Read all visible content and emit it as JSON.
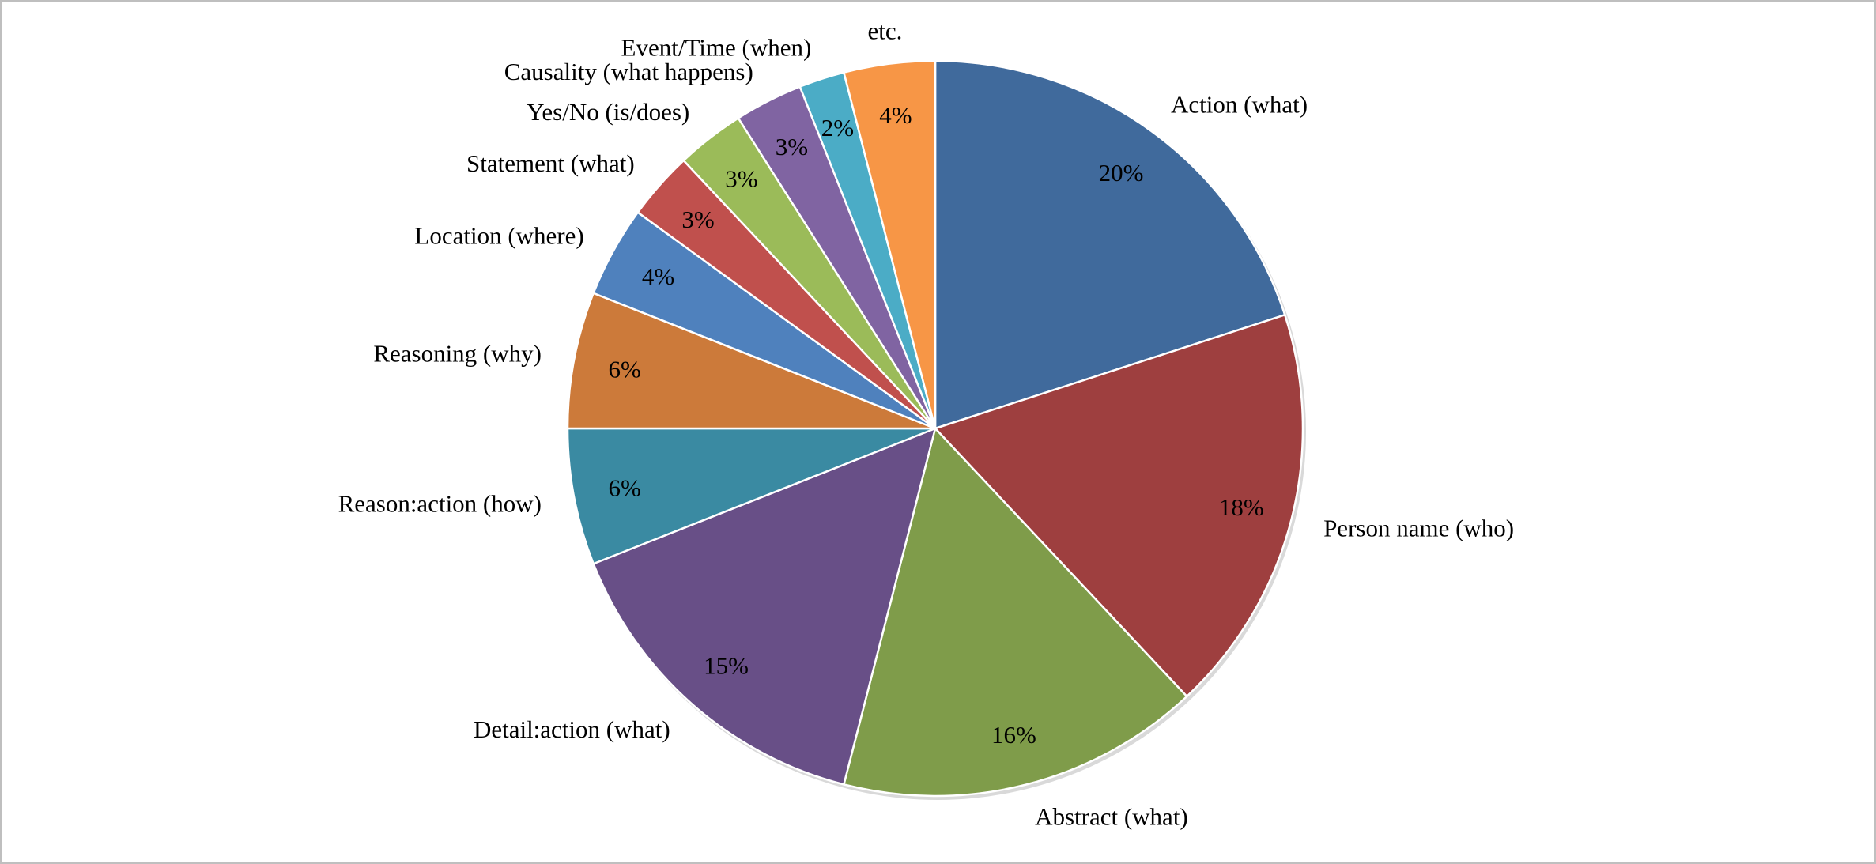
{
  "chart_data": {
    "type": "pie",
    "title": "",
    "start": "top",
    "direction": "clockwise",
    "legend": "none",
    "labels": [
      "Action (what)",
      "Person name (who)",
      "Abstract (what)",
      "Detail:action (what)",
      "Reason:action (how)",
      "Reasoning (why)",
      "Location (where)",
      "Statement (what)",
      "Yes/No (is/does)",
      "Causality (what happens)",
      "Event/Time (when)",
      "etc."
    ],
    "values": [
      20,
      18,
      16,
      15,
      6,
      6,
      4,
      3,
      3,
      3,
      2,
      4
    ],
    "value_labels": [
      "20%",
      "18%",
      "16%",
      "15%",
      "6%",
      "6%",
      "4%",
      "3%",
      "3%",
      "3%",
      "2%",
      "4%"
    ],
    "colors": [
      "#406A9C",
      "#9E3F3F",
      "#7F9C4A",
      "#684F87",
      "#3A8AA2",
      "#CC7A3A",
      "#4F81BD",
      "#C0504D",
      "#9BBB59",
      "#8064A2",
      "#4BACC6",
      "#F79646"
    ]
  }
}
